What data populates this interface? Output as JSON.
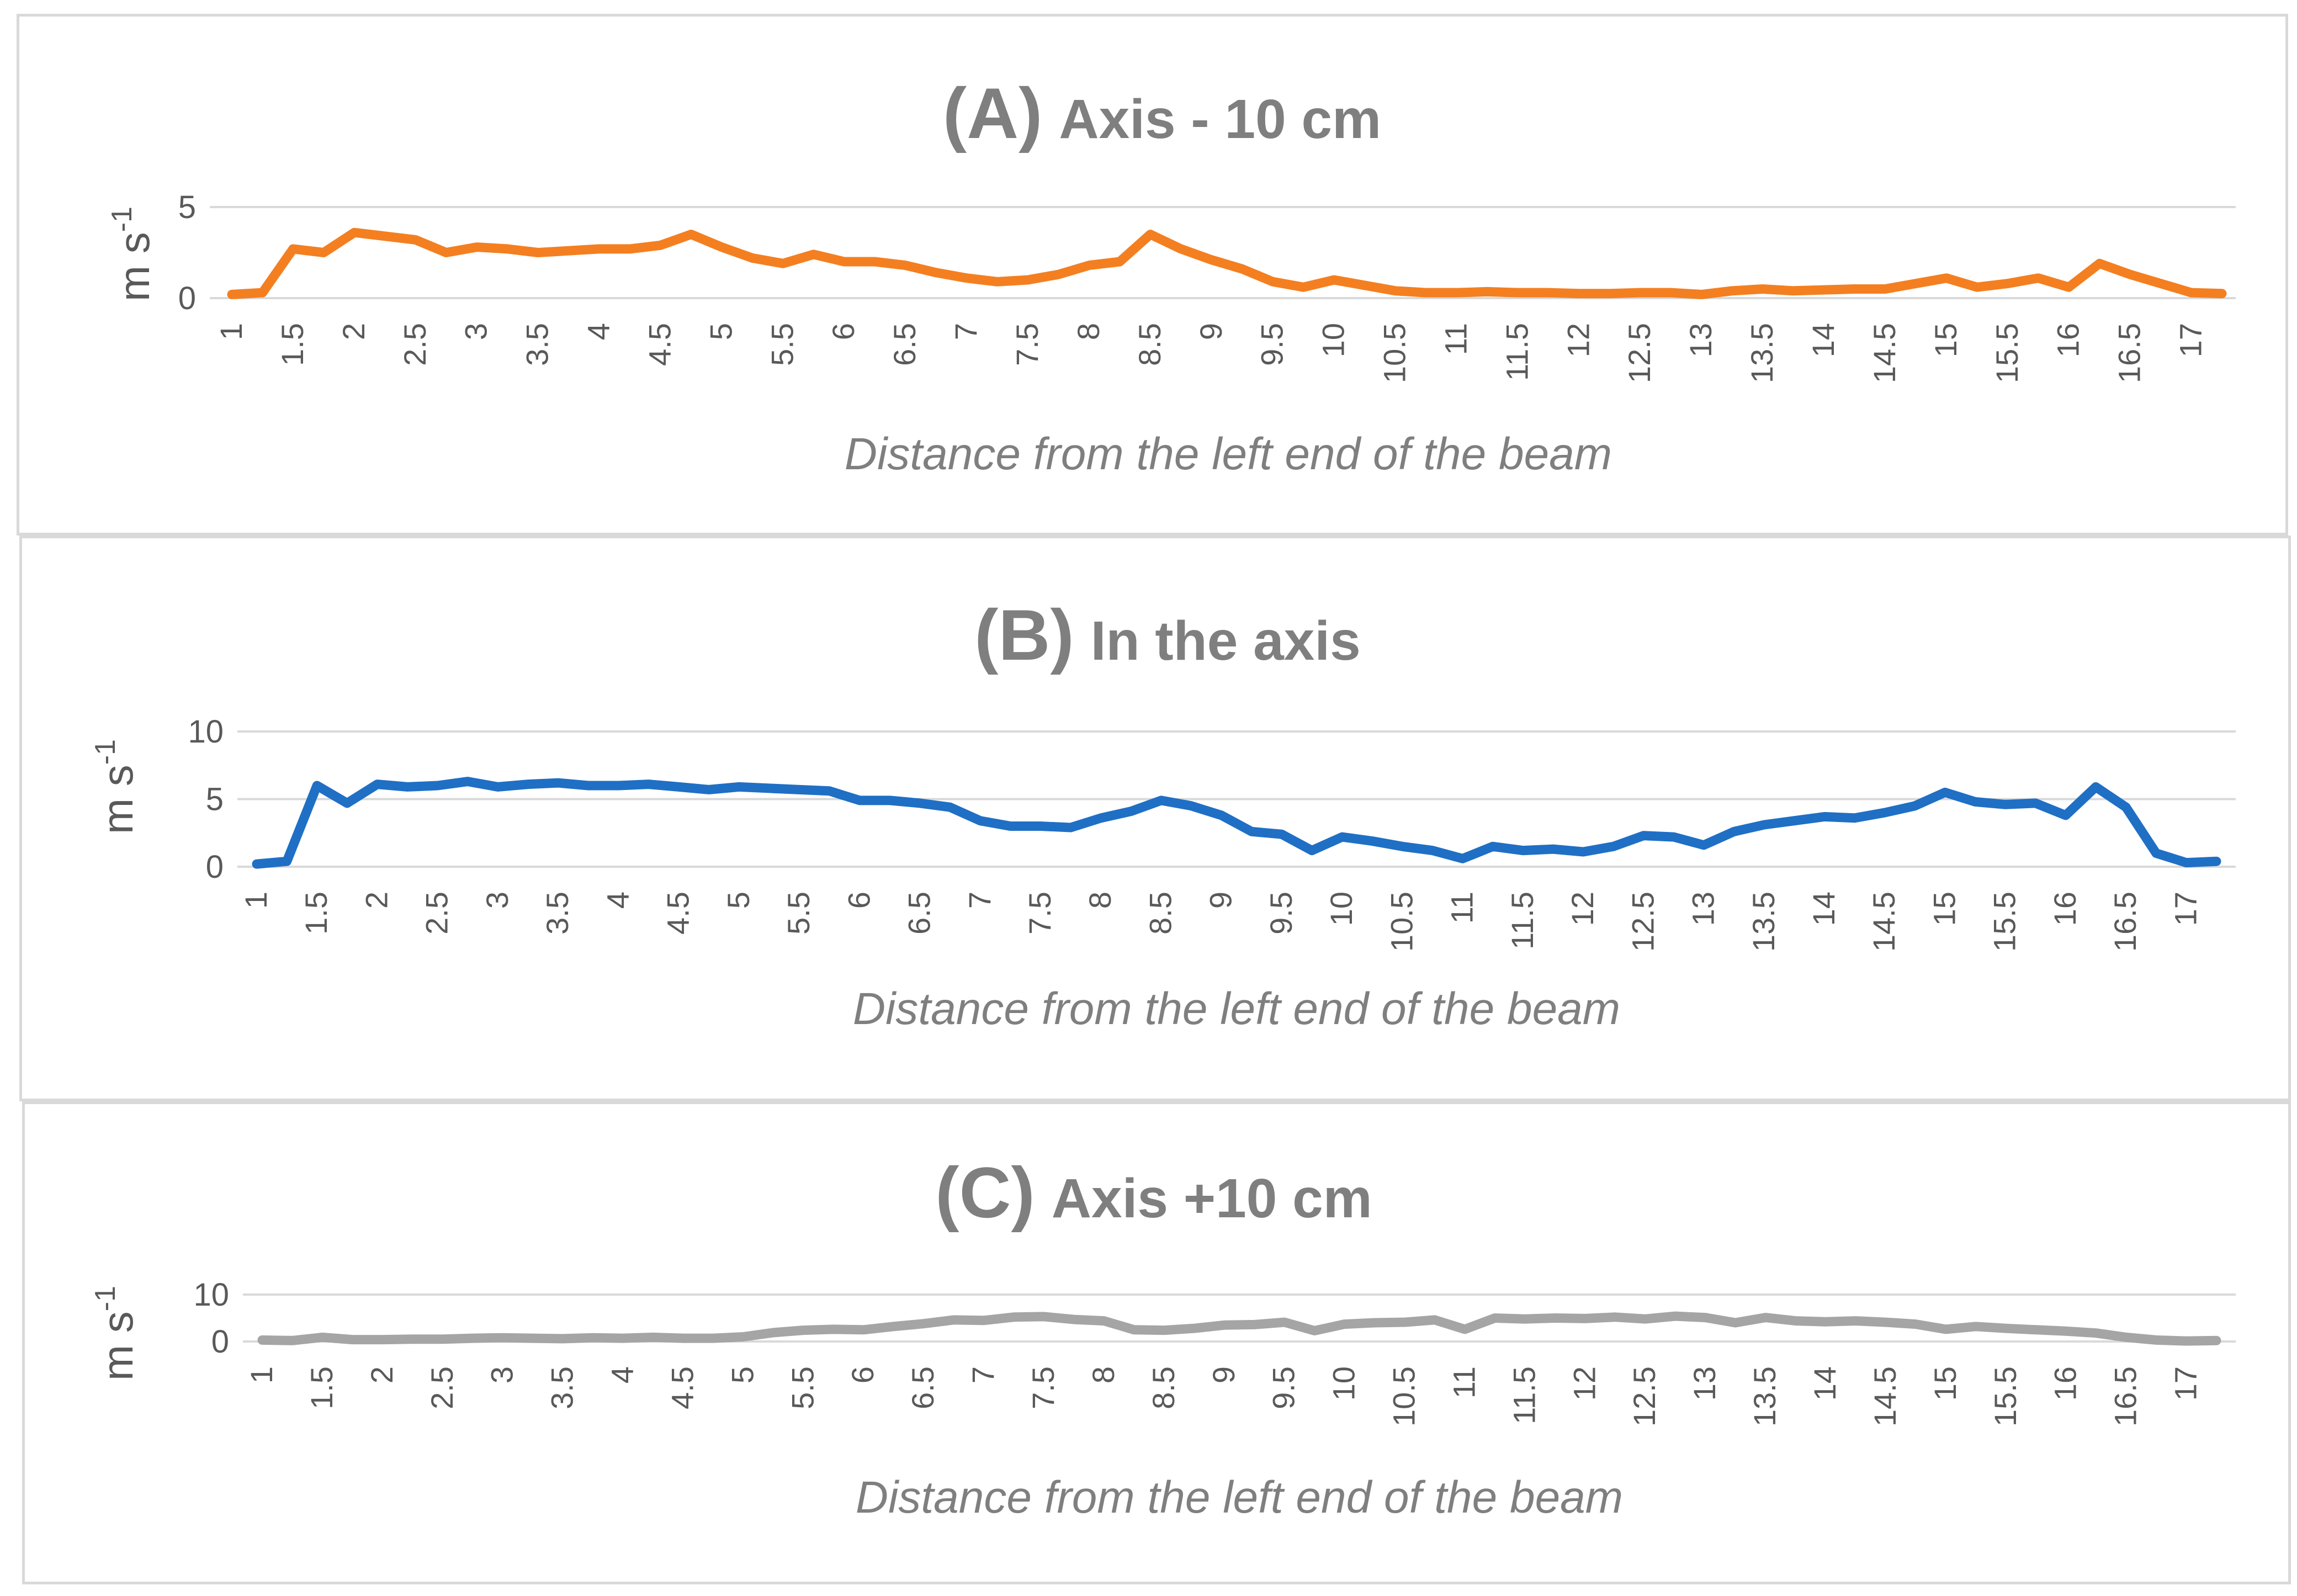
{
  "chart_data": [
    {
      "type": "line",
      "title_letter": "(A)",
      "title": "Axis - 10 cm",
      "xlabel": "Distance from the left end of the beam",
      "ylabel": "m s",
      "ylabel_sup": "-1",
      "ylim": [
        0,
        5
      ],
      "yticks": [
        0,
        5
      ],
      "grid": true,
      "color": "#F47F20",
      "x": [
        1,
        1.25,
        1.5,
        1.75,
        2,
        2.25,
        2.5,
        2.75,
        3,
        3.25,
        3.5,
        3.75,
        4,
        4.25,
        4.5,
        4.75,
        5,
        5.25,
        5.5,
        5.75,
        6,
        6.25,
        6.5,
        6.75,
        7,
        7.25,
        7.5,
        7.75,
        8,
        8.25,
        8.5,
        8.75,
        9,
        9.25,
        9.5,
        9.75,
        10,
        10.25,
        10.5,
        10.75,
        11,
        11.25,
        11.5,
        11.75,
        12,
        12.25,
        12.5,
        12.75,
        13,
        13.25,
        13.5,
        13.75,
        14,
        14.25,
        14.5,
        14.75,
        15,
        15.25,
        15.5,
        15.75,
        16,
        16.25,
        16.5,
        16.75,
        17,
        17.25
      ],
      "series": [
        {
          "values": [
            0.2,
            0.3,
            2.7,
            2.5,
            3.6,
            3.4,
            3.2,
            2.5,
            2.8,
            2.7,
            2.5,
            2.6,
            2.7,
            2.7,
            2.9,
            3.5,
            2.8,
            2.2,
            1.9,
            2.4,
            2.0,
            2.0,
            1.8,
            1.4,
            1.1,
            0.9,
            1.0,
            1.3,
            1.8,
            2.0,
            3.5,
            2.7,
            2.1,
            1.6,
            0.9,
            0.6,
            1.0,
            0.7,
            0.4,
            0.3,
            0.3,
            0.35,
            0.3,
            0.3,
            0.25,
            0.25,
            0.3,
            0.3,
            0.2,
            0.4,
            0.5,
            0.4,
            0.45,
            0.5,
            0.5,
            0.8,
            1.1,
            0.6,
            0.8,
            1.1,
            0.6,
            1.9,
            1.3,
            0.8,
            0.3,
            0.25
          ]
        }
      ],
      "x_ticks": [
        "1",
        "1.5",
        "2",
        "2.5",
        "3",
        "3.5",
        "4",
        "4.5",
        "5",
        "5.5",
        "6",
        "6.5",
        "7",
        "7.5",
        "8",
        "8.5",
        "9",
        "9.5",
        "10",
        "10.5",
        "11",
        "11.5",
        "12",
        "12.5",
        "13",
        "13.5",
        "14",
        "14.5",
        "15",
        "15.5",
        "16",
        "16.5",
        "17"
      ]
    },
    {
      "type": "line",
      "title_letter": "(B)",
      "title": "In the axis",
      "xlabel": "Distance from the left end of the beam",
      "ylabel": "m s",
      "ylabel_sup": "-1",
      "ylim": [
        0,
        10
      ],
      "yticks": [
        0,
        5,
        10
      ],
      "grid": true,
      "color": "#1F6FC5",
      "x": [
        1,
        1.25,
        1.5,
        1.75,
        2,
        2.25,
        2.5,
        2.75,
        3,
        3.25,
        3.5,
        3.75,
        4,
        4.25,
        4.5,
        4.75,
        5,
        5.25,
        5.5,
        5.75,
        6,
        6.25,
        6.5,
        6.75,
        7,
        7.25,
        7.5,
        7.75,
        8,
        8.25,
        8.5,
        8.75,
        9,
        9.25,
        9.5,
        9.75,
        10,
        10.25,
        10.5,
        10.75,
        11,
        11.25,
        11.5,
        11.75,
        12,
        12.25,
        12.5,
        12.75,
        13,
        13.25,
        13.5,
        13.75,
        14,
        14.25,
        14.5,
        14.75,
        15,
        15.25,
        15.5,
        15.75,
        16,
        16.25,
        16.5,
        16.75,
        17,
        17.25
      ],
      "series": [
        {
          "values": [
            0.2,
            0.4,
            6.0,
            4.7,
            6.1,
            5.9,
            6.0,
            6.3,
            5.9,
            6.1,
            6.2,
            6.0,
            6.0,
            6.1,
            5.9,
            5.7,
            5.9,
            5.8,
            5.7,
            5.6,
            4.9,
            4.9,
            4.7,
            4.4,
            3.4,
            3.0,
            3.0,
            2.9,
            3.6,
            4.1,
            4.9,
            4.5,
            3.8,
            2.6,
            2.4,
            1.2,
            2.2,
            1.9,
            1.5,
            1.2,
            0.6,
            1.5,
            1.2,
            1.3,
            1.1,
            1.5,
            2.3,
            2.2,
            1.6,
            2.6,
            3.1,
            3.4,
            3.7,
            3.6,
            4.0,
            4.5,
            5.5,
            4.8,
            4.6,
            4.7,
            3.8,
            5.9,
            4.4,
            1.0,
            0.3,
            0.4
          ]
        }
      ],
      "x_ticks": [
        "1",
        "1.5",
        "2",
        "2.5",
        "3",
        "3.5",
        "4",
        "4.5",
        "5",
        "5.5",
        "6",
        "6.5",
        "7",
        "7.5",
        "8",
        "8.5",
        "9",
        "9.5",
        "10",
        "10.5",
        "11",
        "11.5",
        "12",
        "12.5",
        "13",
        "13.5",
        "14",
        "14.5",
        "15",
        "15.5",
        "16",
        "16.5",
        "17"
      ]
    },
    {
      "type": "line",
      "title_letter": "(C)",
      "title": "Axis +10 cm",
      "xlabel": "Distance from the left end of the beam",
      "ylabel": "m s",
      "ylabel_sup": "-1",
      "ylim": [
        0,
        10
      ],
      "yticks": [
        0,
        10
      ],
      "grid": true,
      "color": "#A5A5A5",
      "x": [
        1,
        1.25,
        1.5,
        1.75,
        2,
        2.25,
        2.5,
        2.75,
        3,
        3.25,
        3.5,
        3.75,
        4,
        4.25,
        4.5,
        4.75,
        5,
        5.25,
        5.5,
        5.75,
        6,
        6.25,
        6.5,
        6.75,
        7,
        7.25,
        7.5,
        7.75,
        8,
        8.25,
        8.5,
        8.75,
        9,
        9.25,
        9.5,
        9.75,
        10,
        10.25,
        10.5,
        10.75,
        11,
        11.25,
        11.5,
        11.75,
        12,
        12.25,
        12.5,
        12.75,
        13,
        13.25,
        13.5,
        13.75,
        14,
        14.25,
        14.5,
        14.75,
        15,
        15.25,
        15.5,
        15.75,
        16,
        16.25,
        16.5,
        16.75,
        17,
        17.25
      ],
      "series": [
        {
          "values": [
            0.3,
            0.2,
            0.9,
            0.4,
            0.4,
            0.5,
            0.5,
            0.7,
            0.8,
            0.7,
            0.6,
            0.8,
            0.7,
            0.9,
            0.7,
            0.7,
            1.0,
            1.9,
            2.4,
            2.6,
            2.5,
            3.2,
            3.8,
            4.6,
            4.5,
            5.2,
            5.3,
            4.7,
            4.4,
            2.5,
            2.4,
            2.8,
            3.5,
            3.6,
            4.1,
            2.3,
            3.7,
            4.0,
            4.1,
            4.6,
            2.6,
            5.0,
            4.8,
            5.0,
            4.9,
            5.2,
            4.8,
            5.4,
            5.1,
            4.0,
            5.1,
            4.4,
            4.2,
            4.4,
            4.1,
            3.7,
            2.6,
            3.2,
            2.8,
            2.5,
            2.2,
            1.8,
            0.9,
            0.3,
            0.1,
            0.2
          ]
        }
      ],
      "x_ticks": [
        "1",
        "1.5",
        "2",
        "2.5",
        "3",
        "3.5",
        "4",
        "4.5",
        "5",
        "5.5",
        "6",
        "6.5",
        "7",
        "7.5",
        "8",
        "8.5",
        "9",
        "9.5",
        "10",
        "10.5",
        "11",
        "11.5",
        "12",
        "12.5",
        "13",
        "13.5",
        "14",
        "14.5",
        "15",
        "15.5",
        "16",
        "16.5",
        "17"
      ]
    }
  ]
}
